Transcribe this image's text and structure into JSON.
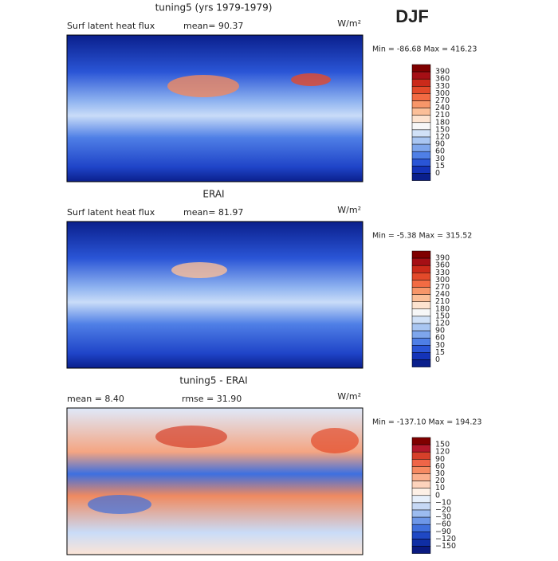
{
  "title": "DJF",
  "panels": [
    {
      "title": "tuning5 (yrs 1979-1979)",
      "left_label": "Surf latent heat flux",
      "stat": "mean=  90.37",
      "units": "W/m²",
      "range": "Min = -86.68 Max = 416.23",
      "colorbar": [
        "390",
        "360",
        "330",
        "300",
        "270",
        "240",
        "210",
        "180",
        "150",
        "120",
        "90",
        "60",
        "30",
        "15",
        "0"
      ]
    },
    {
      "title": "ERAI",
      "left_label": "Surf latent heat flux",
      "stat": "mean=  81.97",
      "units": "W/m²",
      "range": "Min =  -5.38 Max = 315.52",
      "colorbar": [
        "390",
        "360",
        "330",
        "300",
        "270",
        "240",
        "210",
        "180",
        "150",
        "120",
        "90",
        "60",
        "30",
        "15",
        "0"
      ]
    },
    {
      "title": "tuning5 - ERAI",
      "left_label": "mean =   8.40",
      "stat": "rmse =   31.90",
      "units": "W/m²",
      "range": "Min = -137.10 Max = 194.23",
      "colorbar": [
        "150",
        "120",
        "90",
        "60",
        "30",
        "20",
        "10",
        "0",
        "−10",
        "−20",
        "−30",
        "−60",
        "−90",
        "−120",
        "−150"
      ]
    }
  ]
}
